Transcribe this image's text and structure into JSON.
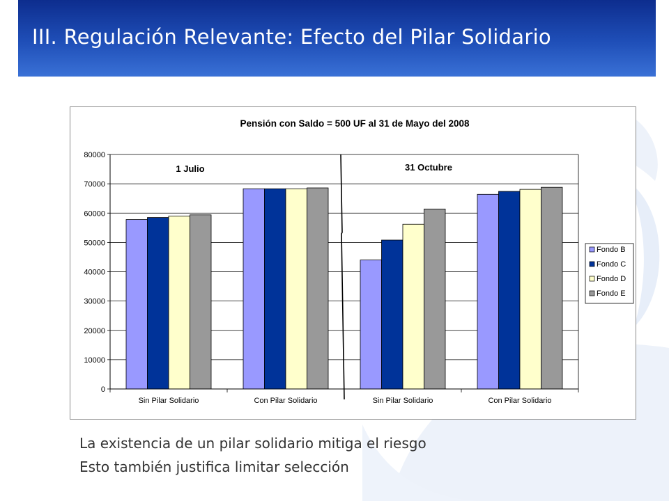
{
  "slide": {
    "title": "III. Regulación Relevante: Efecto del Pilar Solidario",
    "bullets": [
      "La existencia de un pilar solidario mitiga el riesgo",
      "Esto también justifica limitar selección"
    ]
  },
  "colors": {
    "header_dark": "#0d2d8e",
    "header_light": "#3a71d6",
    "fondo_b": "#9999ff",
    "fondo_c": "#003399",
    "fondo_d": "#ffffcc",
    "fondo_e": "#999999"
  },
  "chart_data": {
    "type": "bar",
    "title": "Pensión con Saldo = 500 UF al 31 de Mayo del 2008",
    "categories": [
      "Sin Pilar Solidario",
      "Con Pilar Solidario",
      "Sin Pilar Solidario",
      "Con Pilar Solidario"
    ],
    "series": [
      {
        "name": "Fondo B",
        "color": "#9999ff",
        "values": [
          57800,
          68300,
          44000,
          66400
        ]
      },
      {
        "name": "Fondo C",
        "color": "#003399",
        "values": [
          58500,
          68300,
          50800,
          67400
        ]
      },
      {
        "name": "Fondo D",
        "color": "#ffffcc",
        "values": [
          59000,
          68300,
          56200,
          68100
        ]
      },
      {
        "name": "Fondo E",
        "color": "#999999",
        "values": [
          59400,
          68600,
          61400,
          68800
        ]
      }
    ],
    "ylim": [
      0,
      80000
    ],
    "yticks": [
      "0",
      "10000",
      "20000",
      "30000",
      "40000",
      "50000",
      "60000",
      "70000",
      "80000"
    ],
    "annotations": [
      "1 Julio",
      "31 Octubre"
    ],
    "grid": true,
    "legend": "right"
  }
}
